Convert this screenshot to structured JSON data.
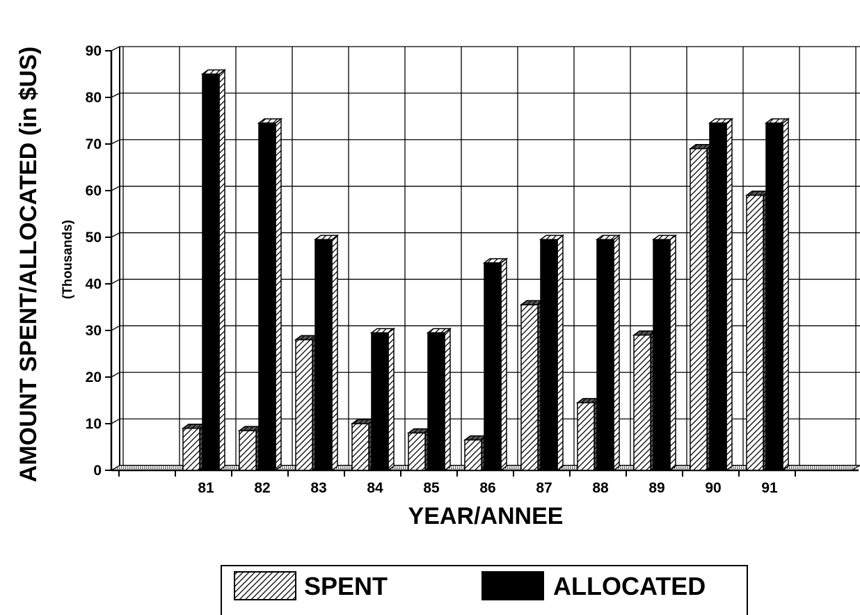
{
  "chart_data": {
    "type": "bar",
    "categories": [
      "81",
      "82",
      "83",
      "84",
      "85",
      "86",
      "87",
      "88",
      "89",
      "90",
      "91"
    ],
    "series": [
      {
        "name": "SPENT",
        "values": [
          9,
          8.5,
          28,
          10,
          8,
          6.5,
          35.5,
          14.5,
          29,
          69,
          59
        ],
        "color": "#000000",
        "pattern": "hatch"
      },
      {
        "name": "ALLOCATED",
        "values": [
          85,
          74.5,
          49.5,
          29.5,
          29.5,
          44.5,
          49.5,
          49.5,
          49.5,
          74.5,
          74.5
        ],
        "color": "#000000",
        "pattern": "solid"
      }
    ],
    "xlabel": "YEAR/ANNEE",
    "ylabel": "AMOUNT SPENT/ALLOCATED (in $US)",
    "ylabel_sub": "(Thousands)",
    "ylim": [
      0,
      90
    ],
    "yticks": [
      "0",
      "10",
      "20",
      "30",
      "40",
      "50",
      "60",
      "70",
      "80",
      "90"
    ],
    "grid": true,
    "legend_position": "bottom"
  }
}
